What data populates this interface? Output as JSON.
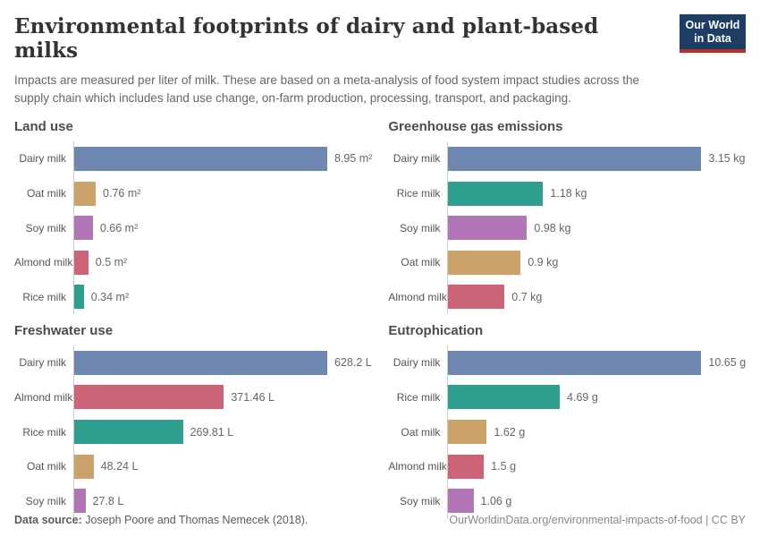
{
  "header": {
    "title": "Environmental footprints of dairy and plant-based milks",
    "subtitle": "Impacts are measured per liter of milk. These are based on a meta-analysis of food system impact studies across the supply chain which includes land use change, on-farm production, processing, transport, and packaging.",
    "logo": {
      "line1": "Our World",
      "line2": "in Data",
      "bg_color": "#1d3d63",
      "accent_color": "#b5312b"
    }
  },
  "category_colors": {
    "Dairy milk": "#6d87b0",
    "Oat milk": "#cba269",
    "Soy milk": "#b175b6",
    "Almond milk": "#cc6377",
    "Rice milk": "#2e9e8e"
  },
  "chart_data": [
    {
      "type": "bar",
      "title": "Land use",
      "orientation": "horizontal",
      "unit": "m²",
      "categories": [
        "Dairy milk",
        "Oat milk",
        "Soy milk",
        "Almond milk",
        "Rice milk"
      ],
      "values": [
        8.95,
        0.76,
        0.66,
        0.5,
        0.34
      ],
      "value_labels": [
        "8.95 m²",
        "0.76 m²",
        "0.66 m²",
        "0.5 m²",
        "0.34 m²"
      ],
      "xlim": [
        0,
        8.95
      ],
      "grid": false,
      "legend": "none"
    },
    {
      "type": "bar",
      "title": "Greenhouse gas emissions",
      "orientation": "horizontal",
      "unit": "kg",
      "categories": [
        "Dairy milk",
        "Rice milk",
        "Soy milk",
        "Oat milk",
        "Almond milk"
      ],
      "values": [
        3.15,
        1.18,
        0.98,
        0.9,
        0.7
      ],
      "value_labels": [
        "3.15 kg",
        "1.18 kg",
        "0.98 kg",
        "0.9 kg",
        "0.7 kg"
      ],
      "xlim": [
        0,
        3.15
      ],
      "grid": false,
      "legend": "none"
    },
    {
      "type": "bar",
      "title": "Freshwater use",
      "orientation": "horizontal",
      "unit": "L",
      "categories": [
        "Dairy milk",
        "Almond milk",
        "Rice milk",
        "Oat milk",
        "Soy milk"
      ],
      "values": [
        628.2,
        371.46,
        269.81,
        48.24,
        27.8
      ],
      "value_labels": [
        "628.2 L",
        "371.46 L",
        "269.81 L",
        "48.24 L",
        "27.8 L"
      ],
      "xlim": [
        0,
        628.2
      ],
      "grid": false,
      "legend": "none"
    },
    {
      "type": "bar",
      "title": "Eutrophication",
      "orientation": "horizontal",
      "unit": "g",
      "categories": [
        "Dairy milk",
        "Rice milk",
        "Oat milk",
        "Almond milk",
        "Soy milk"
      ],
      "values": [
        10.65,
        4.69,
        1.62,
        1.5,
        1.06
      ],
      "value_labels": [
        "10.65 g",
        "4.69 g",
        "1.62 g",
        "1.5 g",
        "1.06 g"
      ],
      "xlim": [
        0,
        10.65
      ],
      "grid": false,
      "legend": "none"
    }
  ],
  "footer": {
    "source_label": "Data source:",
    "source_text": " Joseph Poore and Thomas Nemecek (2018).",
    "right_text": "OurWorldinData.org/environmental-impacts-of-food | CC BY"
  }
}
